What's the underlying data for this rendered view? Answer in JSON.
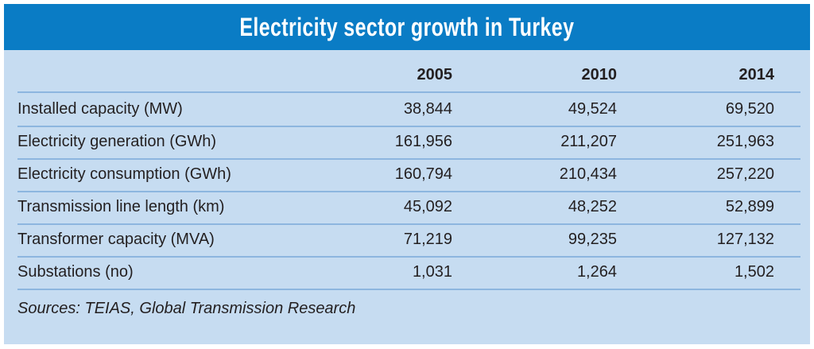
{
  "chart_data": {
    "type": "table",
    "title": "Electricity sector growth in Turkey",
    "columns": [
      "2005",
      "2010",
      "2014"
    ],
    "rows": [
      {
        "label": "Installed capacity (MW)",
        "values": [
          "38,844",
          "49,524",
          "69,520"
        ]
      },
      {
        "label": "Electricity generation (GWh)",
        "values": [
          "161,956",
          "211,207",
          "251,963"
        ]
      },
      {
        "label": "Electricity consumption (GWh)",
        "values": [
          "160,794",
          "210,434",
          "257,220"
        ]
      },
      {
        "label": "Transmission line length (km)",
        "values": [
          "45,092",
          "48,252",
          "52,899"
        ]
      },
      {
        "label": "Transformer capacity (MVA)",
        "values": [
          "71,219",
          "99,235",
          "127,132"
        ]
      },
      {
        "label": "Substations (no)",
        "values": [
          "1,031",
          "1,264",
          "1,502"
        ]
      }
    ],
    "source": "Sources: TEIAS, Global Transmission Research",
    "colors": {
      "header": "#0a7cc5",
      "background": "#c6dcf1",
      "rule": "#8db6df"
    }
  }
}
